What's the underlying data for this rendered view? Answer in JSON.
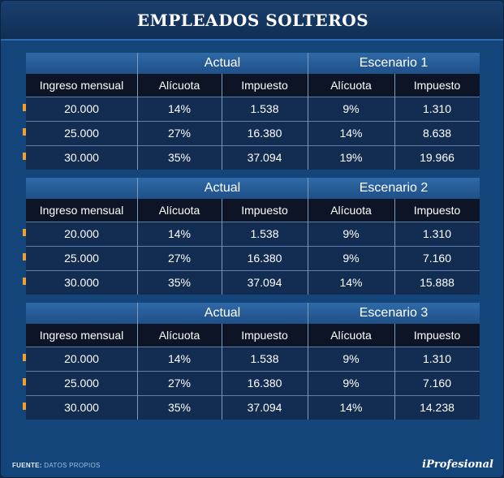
{
  "title": "EMPLEADOS SOLTEROS",
  "footer": {
    "source_label": "FUENTE:",
    "source_text": "DATOS PROPIOS",
    "logo": "iProfesional"
  },
  "colors": {
    "bullet": "#f0a030",
    "header": "#2f6aa6",
    "row": "#132d52"
  },
  "chart_data": {
    "type": "table",
    "title": "EMPLEADOS SOLTEROS",
    "tables": [
      {
        "group_left": "Actual",
        "group_right": "Escenario 1",
        "columns": [
          "Ingreso mensual",
          "Alícuota",
          "Impuesto",
          "Alícuota",
          "Impuesto"
        ],
        "rows": [
          [
            "20.000",
            "14%",
            "1.538",
            "9%",
            "1.310"
          ],
          [
            "25.000",
            "27%",
            "16.380",
            "14%",
            "8.638"
          ],
          [
            "30.000",
            "35%",
            "37.094",
            "19%",
            "19.966"
          ]
        ]
      },
      {
        "group_left": "Actual",
        "group_right": "Escenario 2",
        "columns": [
          "Ingreso mensual",
          "Alícuota",
          "Impuesto",
          "Alícuota",
          "Impuesto"
        ],
        "rows": [
          [
            "20.000",
            "14%",
            "1.538",
            "9%",
            "1.310"
          ],
          [
            "25.000",
            "27%",
            "16.380",
            "9%",
            "7.160"
          ],
          [
            "30.000",
            "35%",
            "37.094",
            "14%",
            "15.888"
          ]
        ]
      },
      {
        "group_left": "Actual",
        "group_right": "Escenario 3",
        "columns": [
          "Ingreso mensual",
          "Alícuota",
          "Impuesto",
          "Alícuota",
          "Impuesto"
        ],
        "rows": [
          [
            "20.000",
            "14%",
            "1.538",
            "9%",
            "1.310"
          ],
          [
            "25.000",
            "27%",
            "16.380",
            "9%",
            "7.160"
          ],
          [
            "30.000",
            "35%",
            "37.094",
            "14%",
            "14.238"
          ]
        ]
      }
    ]
  }
}
